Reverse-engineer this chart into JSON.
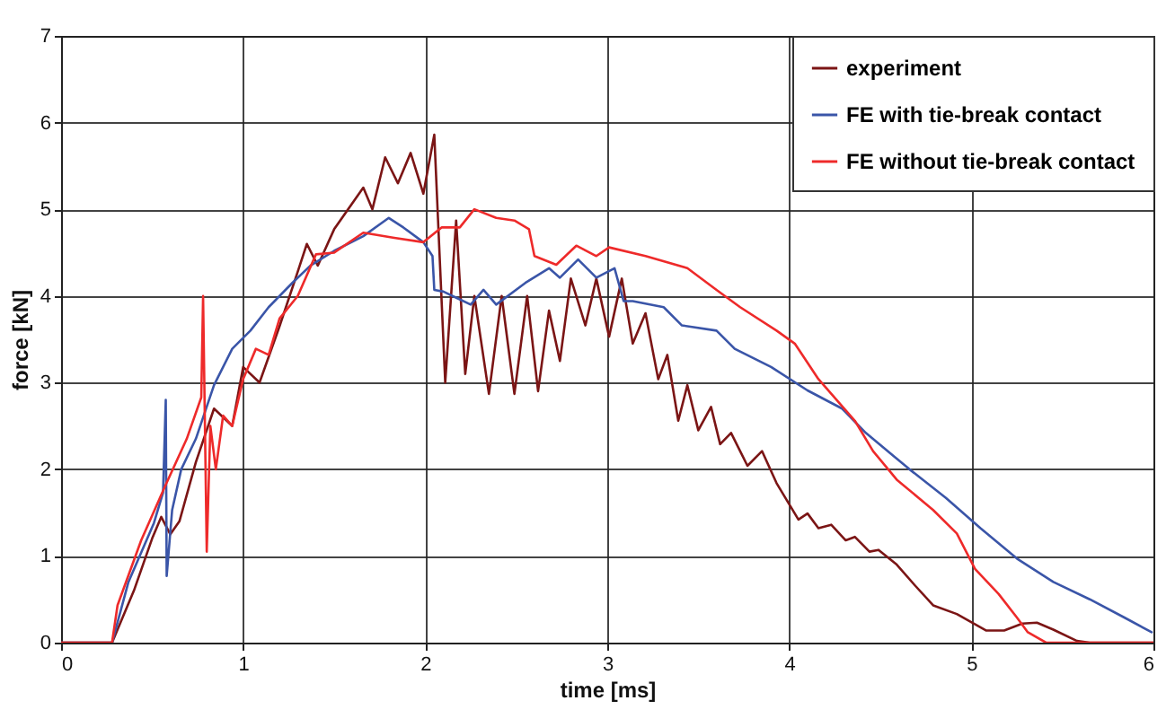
{
  "chart_data": {
    "type": "line",
    "xlabel": "time [ms]",
    "ylabel": "force [kN]",
    "xlim": [
      0,
      6
    ],
    "ylim": [
      0,
      7
    ],
    "xticks": [
      0,
      1,
      2,
      3,
      4,
      5,
      6
    ],
    "yticks": [
      0,
      1,
      2,
      3,
      4,
      5,
      6,
      7
    ],
    "grid": true,
    "legend": "top right",
    "marker": "none",
    "line_style": "solid",
    "series": [
      {
        "name": "experiment",
        "color": "#7b1515",
        "x": [
          0,
          0.28,
          0.4,
          0.5,
          0.55,
          0.6,
          0.65,
          0.74,
          0.84,
          0.94,
          1.0,
          1.09,
          1.2,
          1.3,
          1.35,
          1.41,
          1.5,
          1.66,
          1.71,
          1.78,
          1.85,
          1.92,
          1.99,
          2.05,
          2.07,
          2.11,
          2.17,
          2.22,
          2.27,
          2.35,
          2.42,
          2.49,
          2.56,
          2.62,
          2.68,
          2.74,
          2.8,
          2.88,
          2.94,
          3.01,
          3.08,
          3.14,
          3.21,
          3.28,
          3.33,
          3.39,
          3.44,
          3.5,
          3.57,
          3.62,
          3.68,
          3.77,
          3.85,
          3.93,
          4.05,
          4.1,
          4.16,
          4.23,
          4.31,
          4.36,
          4.44,
          4.49,
          4.59,
          4.69,
          4.79,
          4.92,
          5.08,
          5.18,
          5.28,
          5.36,
          5.45,
          5.58,
          5.65,
          6
        ],
        "values": [
          0,
          0,
          0.6,
          1.2,
          1.45,
          1.25,
          1.4,
          2.08,
          2.7,
          2.5,
          3.18,
          3.0,
          3.65,
          4.28,
          4.6,
          4.35,
          4.77,
          5.25,
          5.0,
          5.6,
          5.3,
          5.65,
          5.18,
          5.86,
          4.9,
          3.0,
          4.87,
          3.1,
          4.0,
          2.87,
          4.0,
          2.87,
          4.0,
          2.9,
          3.83,
          3.25,
          4.2,
          3.66,
          4.2,
          3.53,
          4.2,
          3.45,
          3.8,
          3.04,
          3.32,
          2.56,
          2.97,
          2.45,
          2.72,
          2.29,
          2.42,
          2.04,
          2.21,
          1.84,
          1.42,
          1.49,
          1.32,
          1.36,
          1.18,
          1.22,
          1.05,
          1.07,
          0.9,
          0.66,
          0.43,
          0.33,
          0.14,
          0.14,
          0.22,
          0.23,
          0.15,
          0.02,
          0,
          0
        ]
      },
      {
        "name": "FE with tie-break contact",
        "color": "#3a55a8",
        "x": [
          0,
          0.28,
          0.37,
          0.51,
          0.56,
          0.575,
          0.58,
          0.61,
          0.66,
          0.74,
          0.84,
          0.94,
          1.04,
          1.14,
          1.27,
          1.37,
          1.5,
          1.66,
          1.8,
          1.88,
          1.99,
          2.04,
          2.05,
          2.1,
          2.25,
          2.32,
          2.39,
          2.55,
          2.68,
          2.74,
          2.84,
          2.94,
          3.04,
          3.09,
          3.14,
          3.31,
          3.41,
          3.6,
          3.7,
          3.9,
          4.1,
          4.29,
          4.42,
          4.66,
          4.86,
          5.05,
          5.25,
          5.45,
          5.65,
          5.84,
          5.99
        ],
        "values": [
          0,
          0,
          0.7,
          1.38,
          1.73,
          2.8,
          0.77,
          1.53,
          2.0,
          2.35,
          2.97,
          3.39,
          3.6,
          3.87,
          4.15,
          4.35,
          4.52,
          4.69,
          4.9,
          4.79,
          4.62,
          4.46,
          4.07,
          4.05,
          3.9,
          4.07,
          3.9,
          4.15,
          4.32,
          4.21,
          4.42,
          4.21,
          4.32,
          3.94,
          3.94,
          3.87,
          3.66,
          3.6,
          3.39,
          3.18,
          2.91,
          2.7,
          2.42,
          2.0,
          1.67,
          1.32,
          0.97,
          0.7,
          0.5,
          0.29,
          0.12
        ]
      },
      {
        "name": "FE without tie-break contact",
        "color": "#ee2a2a",
        "x": [
          0,
          0.28,
          0.31,
          0.44,
          0.57,
          0.69,
          0.77,
          0.78,
          0.8,
          0.82,
          0.85,
          0.89,
          0.94,
          1.0,
          1.07,
          1.14,
          1.2,
          1.3,
          1.4,
          1.5,
          1.66,
          1.83,
          1.99,
          2.09,
          2.19,
          2.27,
          2.39,
          2.49,
          2.57,
          2.6,
          2.72,
          2.83,
          2.94,
          3.01,
          3.21,
          3.44,
          3.6,
          3.73,
          3.93,
          4.03,
          4.16,
          4.26,
          4.36,
          4.46,
          4.59,
          4.79,
          4.92,
          5.02,
          5.15,
          5.25,
          5.31,
          5.41,
          6
        ],
        "values": [
          0,
          0,
          0.43,
          1.18,
          1.8,
          2.35,
          2.83,
          4.0,
          1.05,
          2.5,
          2.0,
          2.62,
          2.5,
          3.04,
          3.39,
          3.32,
          3.74,
          4.0,
          4.48,
          4.5,
          4.73,
          4.67,
          4.62,
          4.79,
          4.79,
          5.0,
          4.9,
          4.87,
          4.77,
          4.46,
          4.36,
          4.58,
          4.46,
          4.56,
          4.46,
          4.32,
          4.07,
          3.87,
          3.6,
          3.45,
          3.04,
          2.8,
          2.56,
          2.21,
          1.88,
          1.53,
          1.26,
          0.85,
          0.56,
          0.29,
          0.12,
          0,
          0
        ]
      }
    ]
  }
}
